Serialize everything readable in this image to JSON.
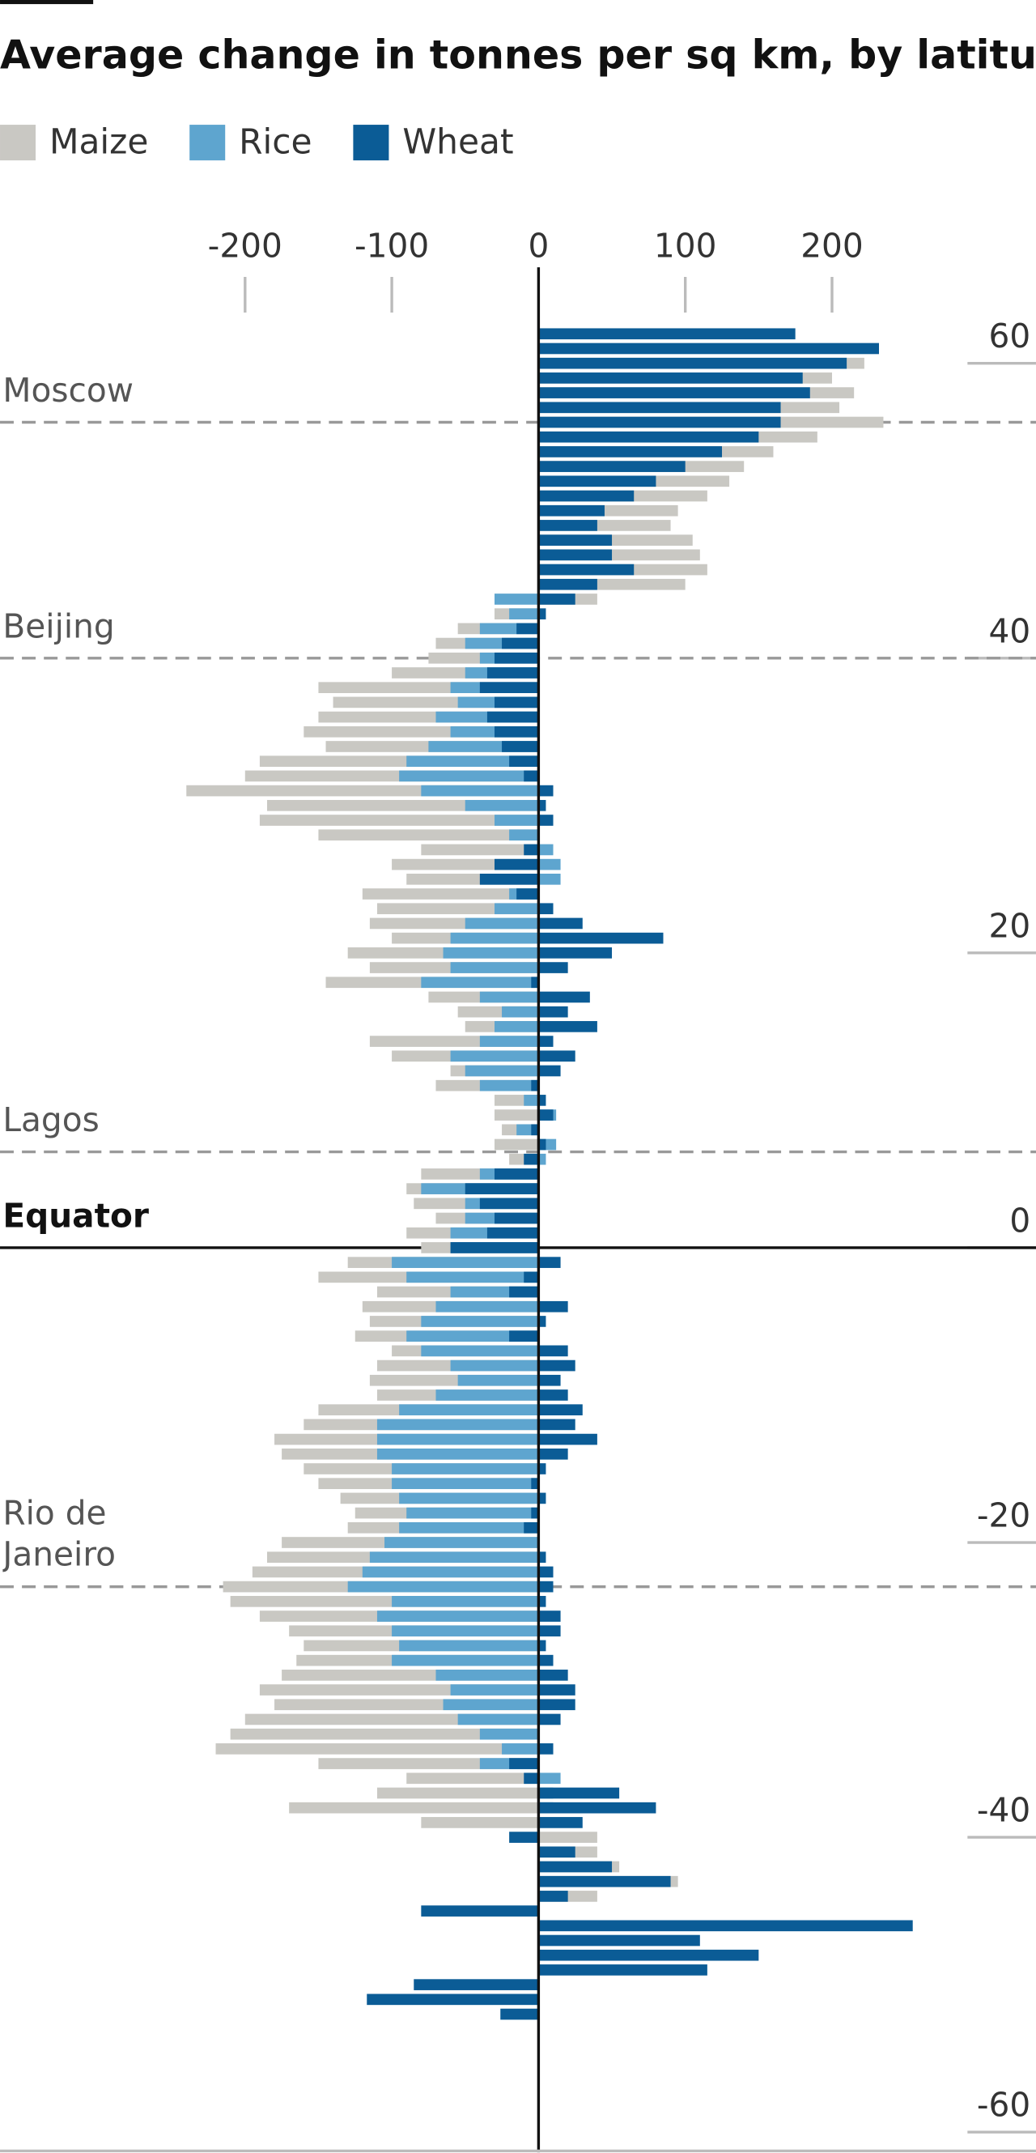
{
  "chart_data": {
    "type": "bar",
    "orientation": "horizontal",
    "title": "Average change in tonnes per sq km, by latitude",
    "y": [
      62,
      61,
      60,
      59,
      58,
      57,
      56,
      55,
      54,
      53,
      52,
      51,
      50,
      49,
      48,
      47,
      46,
      45,
      44,
      43,
      42,
      41,
      40,
      39,
      38,
      37,
      36,
      35,
      34,
      33,
      32,
      31,
      30,
      29,
      28,
      27,
      26,
      25,
      24,
      23,
      22,
      21,
      20,
      19,
      18,
      17,
      16,
      15,
      14,
      13,
      12,
      11,
      10,
      9,
      8,
      7,
      6,
      5,
      4,
      3,
      2,
      1,
      0,
      -1,
      -2,
      -3,
      -4,
      -5,
      -6,
      -7,
      -8,
      -9,
      -10,
      -11,
      -12,
      -13,
      -14,
      -15,
      -16,
      -17,
      -18,
      -19,
      -20,
      -21,
      -22,
      -23,
      -24,
      -25,
      -26,
      -27,
      -28,
      -29,
      -30,
      -31,
      -32,
      -33,
      -34,
      -35,
      -36,
      -37,
      -38,
      -39,
      -40,
      -41,
      -42,
      -43,
      -44,
      -45,
      -46,
      -47,
      -48,
      -49,
      -50,
      -51,
      -52
    ],
    "series": [
      {
        "name": "Maize",
        "color": "#c9c8c3",
        "values": [
          null,
          null,
          222,
          200,
          215,
          205,
          235,
          190,
          160,
          140,
          130,
          115,
          95,
          90,
          105,
          110,
          115,
          100,
          40,
          -30,
          -55,
          -70,
          -75,
          -100,
          -150,
          -140,
          -150,
          -160,
          -145,
          -190,
          -200,
          -240,
          -185,
          -190,
          -150,
          -80,
          -100,
          -90,
          -120,
          -110,
          -115,
          -100,
          -130,
          -115,
          -145,
          -75,
          -55,
          -50,
          -115,
          -100,
          -60,
          -70,
          -30,
          -30,
          -25,
          -30,
          -20,
          -80,
          -90,
          -85,
          -70,
          -90,
          -80,
          -130,
          -150,
          -110,
          -120,
          -115,
          -125,
          -100,
          -110,
          -115,
          -110,
          -150,
          -160,
          -180,
          -175,
          -160,
          -150,
          -135,
          -125,
          -130,
          -175,
          -185,
          -195,
          -215,
          -210,
          -190,
          -170,
          -160,
          -165,
          -175,
          -190,
          -180,
          -200,
          -210,
          -220,
          -150,
          -90,
          -110,
          -170,
          -80,
          40,
          40,
          55,
          95,
          40,
          null,
          null,
          null,
          null,
          null,
          null,
          null,
          null
        ]
      },
      {
        "name": "Rice",
        "color": "#5ea5cf",
        "values": [
          null,
          null,
          null,
          null,
          null,
          null,
          null,
          null,
          null,
          null,
          null,
          null,
          null,
          null,
          null,
          null,
          null,
          null,
          -30,
          -20,
          -40,
          -50,
          -40,
          -50,
          -60,
          -55,
          -70,
          -60,
          -75,
          -90,
          -95,
          -80,
          -50,
          -30,
          -20,
          10,
          15,
          15,
          -20,
          -30,
          -50,
          -60,
          -65,
          -60,
          -80,
          -40,
          -25,
          -30,
          -40,
          -60,
          -50,
          -40,
          -10,
          12,
          -15,
          12,
          5,
          -40,
          -80,
          -50,
          -50,
          -60,
          -60,
          -100,
          -90,
          -60,
          -70,
          -80,
          -90,
          -80,
          -60,
          -55,
          -70,
          -95,
          -110,
          -110,
          -110,
          -100,
          -100,
          -95,
          -90,
          -95,
          -105,
          -115,
          -120,
          -130,
          -100,
          -110,
          -100,
          -95,
          -100,
          -70,
          -60,
          -65,
          -55,
          -40,
          -25,
          -40,
          15,
          10,
          10,
          null,
          null,
          null,
          null,
          null,
          null,
          null,
          null,
          null,
          null,
          null,
          null,
          null,
          null
        ]
      },
      {
        "name": "Wheat",
        "color": "#0b5c96",
        "values": [
          175,
          232,
          210,
          180,
          185,
          165,
          165,
          150,
          125,
          100,
          80,
          65,
          45,
          40,
          50,
          50,
          65,
          40,
          25,
          5,
          -15,
          -25,
          -30,
          -35,
          -40,
          -30,
          -35,
          -30,
          -25,
          -20,
          -10,
          10,
          5,
          10,
          0,
          -10,
          -30,
          -40,
          -15,
          10,
          30,
          85,
          50,
          20,
          -5,
          35,
          20,
          40,
          10,
          25,
          15,
          -5,
          5,
          10,
          -5,
          5,
          -10,
          -30,
          -50,
          -40,
          -30,
          -35,
          -60,
          15,
          -10,
          -20,
          20,
          5,
          -20,
          20,
          25,
          15,
          20,
          30,
          25,
          40,
          20,
          5,
          -5,
          5,
          -5,
          -10,
          0,
          5,
          10,
          10,
          5,
          15,
          15,
          5,
          10,
          20,
          25,
          25,
          15,
          0,
          10,
          -20,
          -10,
          55,
          80,
          30,
          -20,
          25,
          50,
          90,
          20,
          -80,
          255,
          110,
          150,
          115,
          -85,
          -117,
          -26
        ]
      }
    ],
    "xlim": [
      -367,
      339
    ],
    "xticks": [
      -200,
      -100,
      0,
      100,
      200
    ],
    "ylim": [
      -61,
      64
    ],
    "yticks": [
      60,
      40,
      20,
      0,
      -20,
      -40,
      -60
    ],
    "annotations": [
      {
        "label": "Moscow",
        "lat": 56,
        "line": "dashed"
      },
      {
        "label": "Beijing",
        "lat": 40,
        "line": "dashed"
      },
      {
        "label": "Lagos",
        "lat": 6.5,
        "line": "dashed"
      },
      {
        "label": "Equator",
        "lat": 0,
        "line": "solid"
      },
      {
        "label": "Rio de Janeiro",
        "lat": -23,
        "line": "dashed"
      }
    ]
  }
}
